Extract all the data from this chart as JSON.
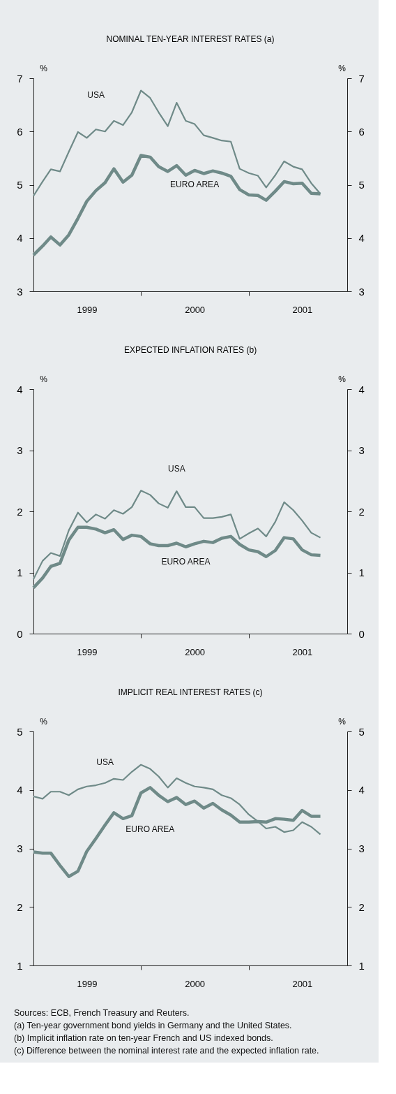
{
  "chart_data": [
    {
      "type": "line",
      "title": "NOMINAL TEN-YEAR INTEREST RATES (a)",
      "ylabel": "%",
      "y2label": "%",
      "x": [
        "1999-01",
        "1999-02",
        "1999-03",
        "1999-04",
        "1999-05",
        "1999-06",
        "1999-07",
        "1999-08",
        "1999-09",
        "1999-10",
        "1999-11",
        "1999-12",
        "2000-01",
        "2000-02",
        "2000-03",
        "2000-04",
        "2000-05",
        "2000-06",
        "2000-07",
        "2000-08",
        "2000-09",
        "2000-10",
        "2000-11",
        "2000-12",
        "2001-01",
        "2001-02",
        "2001-03",
        "2001-04",
        "2001-05",
        "2001-06",
        "2001-07",
        "2001-08",
        "2001-09"
      ],
      "xlim": [
        "1999-01",
        "2001-12"
      ],
      "xticks": [
        {
          "value": "1999-07",
          "label": "1999"
        },
        {
          "value": "2000-01",
          "label": null
        },
        {
          "value": "2000-07",
          "label": "2000"
        },
        {
          "value": "2001-01",
          "label": null
        },
        {
          "value": "2001-07",
          "label": "2001"
        }
      ],
      "ylim": [
        3,
        7
      ],
      "yticks": [
        3,
        4,
        5,
        6,
        7
      ],
      "y2lim": [
        3,
        7
      ],
      "y2ticks": [
        3,
        4,
        5,
        6,
        7
      ],
      "series": [
        {
          "name": "USA",
          "color": "#6f8a88",
          "values": [
            4.79,
            5.06,
            5.29,
            5.25,
            5.62,
            5.99,
            5.88,
            6.04,
            6.0,
            6.2,
            6.12,
            6.36,
            6.77,
            6.63,
            6.36,
            6.1,
            6.54,
            6.2,
            6.14,
            5.93,
            5.88,
            5.83,
            5.81,
            5.3,
            5.22,
            5.17,
            4.95,
            5.18,
            5.44,
            5.34,
            5.29,
            5.03,
            4.83
          ]
        },
        {
          "name": "EURO AREA",
          "color": "#6f8a88",
          "values": [
            3.68,
            3.85,
            4.02,
            3.87,
            4.06,
            4.37,
            4.69,
            4.89,
            5.04,
            5.3,
            5.05,
            5.18,
            5.55,
            5.52,
            5.34,
            5.25,
            5.36,
            5.18,
            5.27,
            5.21,
            5.26,
            5.22,
            5.16,
            4.91,
            4.81,
            4.8,
            4.71,
            4.88,
            5.06,
            5.02,
            5.03,
            4.84,
            4.83
          ]
        }
      ]
    },
    {
      "type": "line",
      "title": "EXPECTED INFLATION RATES (b)",
      "ylabel": "%",
      "y2label": "%",
      "x": [
        "1999-01",
        "1999-02",
        "1999-03",
        "1999-04",
        "1999-05",
        "1999-06",
        "1999-07",
        "1999-08",
        "1999-09",
        "1999-10",
        "1999-11",
        "1999-12",
        "2000-01",
        "2000-02",
        "2000-03",
        "2000-04",
        "2000-05",
        "2000-06",
        "2000-07",
        "2000-08",
        "2000-09",
        "2000-10",
        "2000-11",
        "2000-12",
        "2001-01",
        "2001-02",
        "2001-03",
        "2001-04",
        "2001-05",
        "2001-06",
        "2001-07",
        "2001-08",
        "2001-09"
      ],
      "xlim": [
        "1999-01",
        "2001-12"
      ],
      "xticks": [
        {
          "value": "1999-07",
          "label": "1999"
        },
        {
          "value": "2000-01",
          "label": null
        },
        {
          "value": "2000-07",
          "label": "2000"
        },
        {
          "value": "2001-01",
          "label": null
        },
        {
          "value": "2001-07",
          "label": "2001"
        }
      ],
      "ylim": [
        0,
        4
      ],
      "yticks": [
        0,
        1,
        2,
        3,
        4
      ],
      "y2lim": [
        0,
        4
      ],
      "y2ticks": [
        0,
        1,
        2,
        3,
        4
      ],
      "series": [
        {
          "name": "USA",
          "color": "#6f8a88",
          "values": [
            0.89,
            1.19,
            1.32,
            1.27,
            1.69,
            1.98,
            1.82,
            1.95,
            1.88,
            2.02,
            1.96,
            2.07,
            2.34,
            2.27,
            2.13,
            2.06,
            2.33,
            2.07,
            2.07,
            1.89,
            1.89,
            1.91,
            1.95,
            1.55,
            1.64,
            1.72,
            1.59,
            1.83,
            2.15,
            2.02,
            1.85,
            1.65,
            1.57
          ]
        },
        {
          "name": "EURO AREA",
          "color": "#6f8a88",
          "values": [
            0.75,
            0.91,
            1.1,
            1.15,
            1.53,
            1.74,
            1.74,
            1.71,
            1.65,
            1.7,
            1.54,
            1.61,
            1.59,
            1.47,
            1.44,
            1.44,
            1.48,
            1.42,
            1.47,
            1.51,
            1.49,
            1.56,
            1.59,
            1.46,
            1.37,
            1.34,
            1.26,
            1.36,
            1.57,
            1.55,
            1.37,
            1.29,
            1.28
          ]
        }
      ]
    },
    {
      "type": "line",
      "title": "IMPLICIT REAL INTEREST RATES (c)",
      "ylabel": "%",
      "y2label": "%",
      "x": [
        "1999-01",
        "1999-02",
        "1999-03",
        "1999-04",
        "1999-05",
        "1999-06",
        "1999-07",
        "1999-08",
        "1999-09",
        "1999-10",
        "1999-11",
        "1999-12",
        "2000-01",
        "2000-02",
        "2000-03",
        "2000-04",
        "2000-05",
        "2000-06",
        "2000-07",
        "2000-08",
        "2000-09",
        "2000-10",
        "2000-11",
        "2000-12",
        "2001-01",
        "2001-02",
        "2001-03",
        "2001-04",
        "2001-05",
        "2001-06",
        "2001-07",
        "2001-08",
        "2001-09"
      ],
      "xlim": [
        "1999-01",
        "2001-12"
      ],
      "xticks": [
        {
          "value": "1999-07",
          "label": "1999"
        },
        {
          "value": "2000-01",
          "label": null
        },
        {
          "value": "2000-07",
          "label": "2000"
        },
        {
          "value": "2001-01",
          "label": null
        },
        {
          "value": "2001-07",
          "label": "2001"
        }
      ],
      "ylim": [
        1,
        5
      ],
      "yticks": [
        1,
        2,
        3,
        4,
        5
      ],
      "y2lim": [
        1,
        5
      ],
      "y2ticks": [
        1,
        2,
        3,
        4,
        5
      ],
      "series": [
        {
          "name": "USA",
          "color": "#6f8a88",
          "values": [
            3.89,
            3.85,
            3.97,
            3.97,
            3.91,
            4.01,
            4.06,
            4.08,
            4.12,
            4.19,
            4.17,
            4.31,
            4.43,
            4.36,
            4.23,
            4.04,
            4.2,
            4.12,
            4.06,
            4.04,
            4.01,
            3.91,
            3.86,
            3.75,
            3.58,
            3.46,
            3.34,
            3.37,
            3.28,
            3.31,
            3.45,
            3.37,
            3.24
          ]
        },
        {
          "name": "EURO AREA",
          "color": "#6f8a88",
          "values": [
            2.94,
            2.92,
            2.92,
            2.71,
            2.52,
            2.61,
            2.95,
            3.17,
            3.4,
            3.61,
            3.51,
            3.56,
            3.95,
            4.04,
            3.91,
            3.8,
            3.87,
            3.75,
            3.81,
            3.69,
            3.77,
            3.66,
            3.57,
            3.45,
            3.45,
            3.46,
            3.45,
            3.51,
            3.5,
            3.48,
            3.65,
            3.55,
            3.55
          ]
        }
      ],
      "annotations": [
        "Sources: ECB, French Treasury and Reuters.",
        "(a)   Ten-year government bond yields in Germany and the United States.",
        "(b)   Implicit inflation rate on ten-year French and US indexed bonds.",
        "(c)   Difference between the nominal interest rate and the expected inflation rate."
      ]
    }
  ]
}
